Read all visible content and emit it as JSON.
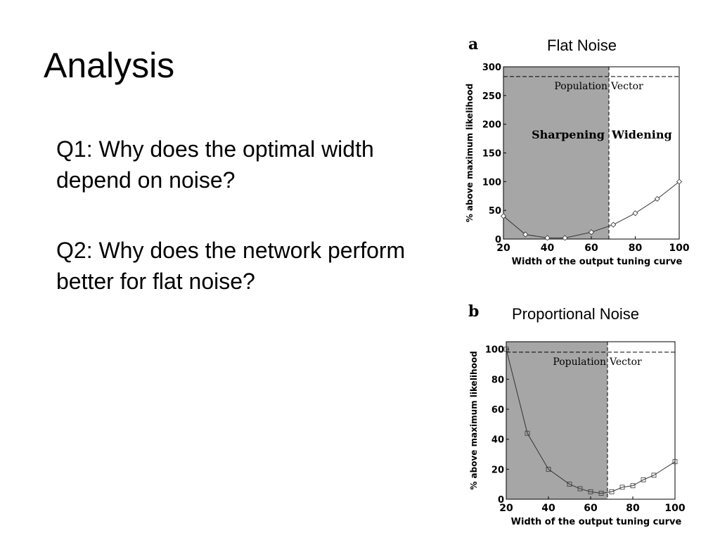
{
  "slide": {
    "title": "Analysis",
    "q1": "Q1:  Why does the optimal width depend on noise?",
    "q2": "Q2:  Why does the network perform better for flat noise?"
  },
  "figures": {
    "a": {
      "letter": "a",
      "caption": "Flat Noise"
    },
    "b": {
      "letter": "b",
      "caption": "Proportional Noise"
    }
  },
  "chart_data": [
    {
      "type": "line",
      "panel": "a",
      "xlabel": "Width of the output tuning curve",
      "ylabel": "% above maximum likelihood",
      "xlim": [
        20,
        100
      ],
      "ylim": [
        0,
        300
      ],
      "xticks": [
        20,
        40,
        60,
        80,
        100
      ],
      "yticks": [
        0,
        50,
        100,
        150,
        200,
        250,
        300
      ],
      "grid": false,
      "shaded_region": {
        "from": 20,
        "to": 68,
        "color": "#a6a6a6"
      },
      "divider_x": 68,
      "reference": {
        "label_left": "Population",
        "label_right": "Vector",
        "y": 283
      },
      "regions": {
        "left": "Sharpening",
        "right": "Widening"
      },
      "marker": "diamond",
      "series": [
        {
          "x": [
            20,
            30,
            40,
            48,
            60,
            70,
            80,
            90,
            100
          ],
          "y": [
            40,
            8,
            2,
            2,
            12,
            25,
            45,
            70,
            100
          ]
        }
      ]
    },
    {
      "type": "line",
      "panel": "b",
      "xlabel": "Width of the output tuning curve",
      "ylabel": "% above maximum likelihood",
      "xlim": [
        20,
        100
      ],
      "ylim": [
        0,
        105
      ],
      "xticks": [
        20,
        40,
        60,
        80,
        100
      ],
      "yticks": [
        0,
        20,
        40,
        60,
        80,
        100
      ],
      "grid": false,
      "shaded_region": {
        "from": 20,
        "to": 68,
        "color": "#a6a6a6"
      },
      "divider_x": 68,
      "reference": {
        "label_left": "Population",
        "label_right": "Vector",
        "y": 98
      },
      "marker": "square",
      "series": [
        {
          "x": [
            20,
            30,
            40,
            50,
            55,
            60,
            65,
            70,
            75,
            80,
            85,
            90,
            100
          ],
          "y": [
            100,
            44,
            20,
            10,
            7,
            5,
            4,
            5,
            8,
            9,
            13,
            16,
            25
          ]
        }
      ]
    }
  ]
}
